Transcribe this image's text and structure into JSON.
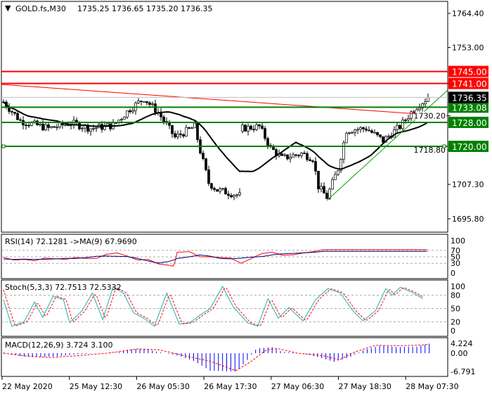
{
  "chart_data": {
    "type": "candlestick",
    "title": "GOLD.fs,M30",
    "ohlc": {
      "open": 1735.25,
      "high": 1736.65,
      "low": 1735.2,
      "close": 1736.35
    },
    "price_axis": {
      "ticks": [
        1764.4,
        1753.0,
        1741.0,
        1730.2,
        1718.8,
        1707.3,
        1695.8
      ],
      "range": [
        1695.8,
        1764.4
      ]
    },
    "levels": [
      {
        "price": 1745.0,
        "label": "1745.00",
        "color": "#ff0000"
      },
      {
        "price": 1741.0,
        "label": "1741.00",
        "color": "#ff0000"
      },
      {
        "price": 1733.08,
        "label": "1733.08",
        "color": "#008000"
      },
      {
        "price": 1728.0,
        "label": "1728.00",
        "color": "#008000"
      },
      {
        "price": 1720.0,
        "label": "1720.00",
        "color": "#008000"
      }
    ],
    "current_price": {
      "price": 1736.35,
      "label": "1736.35"
    },
    "axis_visible_labels": [
      "1764.40",
      "1753.00",
      "1730.20",
      "1718.80",
      "1707.30",
      "1695.80"
    ],
    "price_path": [
      [
        0,
        1734.8
      ],
      [
        6,
        1728.5
      ],
      [
        16,
        1726
      ],
      [
        24,
        1727.8
      ],
      [
        31,
        1726
      ],
      [
        39,
        1727
      ],
      [
        45,
        1732.5
      ],
      [
        50,
        1736
      ],
      [
        55,
        1731.3
      ],
      [
        61,
        1723
      ],
      [
        68,
        1726.6
      ],
      [
        70,
        1718.4
      ],
      [
        73,
        1707.8
      ],
      [
        76,
        1705.4
      ],
      [
        81,
        1704.3
      ],
      [
        84,
        1703.6
      ],
      [
        85,
        1726
      ],
      [
        91,
        1726.6
      ],
      [
        95,
        1719.5
      ],
      [
        99,
        1716
      ],
      [
        106,
        1717.6
      ],
      [
        110,
        1716
      ],
      [
        112,
        1706.6
      ],
      [
        115,
        1703
      ],
      [
        119,
        1712.5
      ],
      [
        122,
        1725.4
      ],
      [
        129,
        1726
      ],
      [
        135,
        1721.9
      ],
      [
        141,
        1726.6
      ],
      [
        146,
        1732.5
      ],
      [
        151,
        1736.35
      ]
    ],
    "ma_period": 20,
    "rsi": {
      "label": "RSI(14) 72.1281  ->MA(9) 67.9690",
      "ticks": [
        "100",
        "70",
        "50",
        "30",
        "0"
      ],
      "levels": [
        70,
        50,
        30
      ],
      "path": [
        [
          0,
          48
        ],
        [
          10,
          40
        ],
        [
          20,
          42
        ],
        [
          30,
          38
        ],
        [
          40,
          46
        ],
        [
          50,
          44
        ],
        [
          60,
          42
        ],
        [
          70,
          48
        ],
        [
          80,
          45
        ],
        [
          90,
          45
        ],
        [
          100,
          58
        ],
        [
          110,
          62
        ],
        [
          120,
          52
        ],
        [
          130,
          40
        ],
        [
          140,
          42
        ],
        [
          150,
          28
        ],
        [
          160,
          24
        ],
        [
          165,
          20
        ],
        [
          168,
          64
        ],
        [
          180,
          66
        ],
        [
          190,
          50
        ],
        [
          200,
          50
        ],
        [
          210,
          48
        ],
        [
          220,
          46
        ],
        [
          230,
          30
        ],
        [
          240,
          45
        ],
        [
          250,
          60
        ],
        [
          260,
          64
        ],
        [
          270,
          55
        ],
        [
          280,
          56
        ],
        [
          290,
          62
        ],
        [
          300,
          66
        ],
        [
          310,
          72
        ]
      ]
    },
    "stoch": {
      "label": "Stoch(5,3,3) 72.7513 72.5332",
      "ticks": [
        "100",
        "80",
        "50",
        "20",
        "0"
      ],
      "levels": [
        80,
        50,
        20
      ],
      "path": [
        [
          0,
          70
        ],
        [
          8,
          10
        ],
        [
          20,
          20
        ],
        [
          30,
          65
        ],
        [
          38,
          30
        ],
        [
          48,
          78
        ],
        [
          58,
          70
        ],
        [
          64,
          18
        ],
        [
          76,
          45
        ],
        [
          86,
          85
        ],
        [
          96,
          25
        ],
        [
          106,
          98
        ],
        [
          116,
          85
        ],
        [
          126,
          40
        ],
        [
          136,
          28
        ],
        [
          146,
          10
        ],
        [
          158,
          85
        ],
        [
          170,
          15
        ],
        [
          180,
          18
        ],
        [
          192,
          38
        ],
        [
          200,
          50
        ],
        [
          212,
          100
        ],
        [
          222,
          55
        ],
        [
          236,
          18
        ],
        [
          246,
          10
        ],
        [
          256,
          72
        ],
        [
          266,
          28
        ],
        [
          276,
          52
        ],
        [
          290,
          22
        ],
        [
          302,
          70
        ],
        [
          314,
          95
        ],
        [
          326,
          85
        ],
        [
          338,
          45
        ],
        [
          348,
          22
        ],
        [
          360,
          45
        ],
        [
          370,
          95
        ],
        [
          376,
          80
        ],
        [
          384,
          98
        ],
        [
          396,
          86
        ],
        [
          406,
          72
        ]
      ]
    },
    "macd": {
      "label": "MACD(12,26,9) 3.724 3.100",
      "ticks": [
        "4.224",
        "0.00",
        "-6.791"
      ],
      "range": [
        -6.791,
        4.224
      ],
      "hist": [
        [
          0,
          0.3
        ],
        [
          15,
          -1
        ],
        [
          30,
          -1.5
        ],
        [
          50,
          -1.2
        ],
        [
          70,
          -0.5
        ],
        [
          90,
          0
        ],
        [
          110,
          0.2
        ],
        [
          120,
          1.5
        ],
        [
          135,
          2
        ],
        [
          150,
          0.5
        ],
        [
          170,
          -1
        ],
        [
          185,
          -3
        ],
        [
          200,
          -6.5
        ],
        [
          225,
          -6.8
        ],
        [
          235,
          -3
        ],
        [
          245,
          2
        ],
        [
          260,
          2.6
        ],
        [
          270,
          0.5
        ],
        [
          290,
          0
        ],
        [
          305,
          -1.5
        ],
        [
          320,
          -3.2
        ],
        [
          335,
          -1.5
        ],
        [
          350,
          1.5
        ],
        [
          365,
          3.3
        ],
        [
          380,
          2.6
        ],
        [
          400,
          2.8
        ],
        [
          412,
          4.1
        ]
      ],
      "signal": [
        [
          0,
          0
        ],
        [
          20,
          -1
        ],
        [
          45,
          -1.6
        ],
        [
          70,
          -1
        ],
        [
          100,
          0
        ],
        [
          130,
          1.8
        ],
        [
          150,
          1.5
        ],
        [
          170,
          -0.5
        ],
        [
          200,
          -3
        ],
        [
          225,
          -6.5
        ],
        [
          240,
          -3
        ],
        [
          255,
          1.5
        ],
        [
          265,
          2
        ],
        [
          285,
          0
        ],
        [
          310,
          -1
        ],
        [
          325,
          -2.5
        ],
        [
          340,
          0.5
        ],
        [
          360,
          3.4
        ],
        [
          380,
          3.2
        ],
        [
          400,
          3.4
        ],
        [
          412,
          3.8
        ]
      ]
    },
    "time_axis": [
      "22 May 2020",
      "25 May 12:30",
      "26 May 05:30",
      "26 May 17:30",
      "27 May 06:30",
      "27 May 18:30",
      "28 May 07:30"
    ]
  }
}
